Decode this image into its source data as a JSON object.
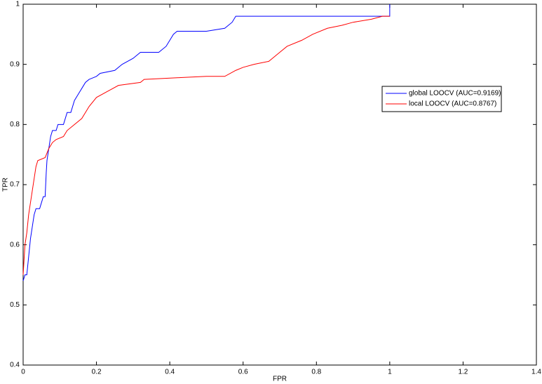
{
  "chart_data": {
    "type": "line",
    "xlabel": "FPR",
    "ylabel": "TPR",
    "xlim": [
      0,
      1.4
    ],
    "ylim": [
      0.4,
      1
    ],
    "xticks": [
      0,
      0.2,
      0.4,
      0.6,
      0.8,
      1,
      1.2,
      1.4
    ],
    "yticks": [
      0.4,
      0.5,
      0.6,
      0.7,
      0.8,
      0.9,
      1
    ],
    "legend": "east",
    "series": [
      {
        "name": "global LOOCV (AUC=0.9169)",
        "color": "#0000ff",
        "x": [
          0,
          0.005,
          0.01,
          0.015,
          0.02,
          0.025,
          0.03,
          0.035,
          0.045,
          0.05,
          0.055,
          0.06,
          0.063,
          0.065,
          0.07,
          0.075,
          0.08,
          0.09,
          0.095,
          0.11,
          0.12,
          0.13,
          0.14,
          0.15,
          0.16,
          0.17,
          0.18,
          0.2,
          0.21,
          0.25,
          0.27,
          0.3,
          0.32,
          0.37,
          0.39,
          0.41,
          0.42,
          0.5,
          0.55,
          0.57,
          0.58,
          0.99,
          1,
          1
        ],
        "values": [
          0.54,
          0.55,
          0.55,
          0.58,
          0.61,
          0.63,
          0.65,
          0.66,
          0.66,
          0.67,
          0.68,
          0.68,
          0.72,
          0.74,
          0.76,
          0.78,
          0.79,
          0.79,
          0.8,
          0.8,
          0.82,
          0.82,
          0.84,
          0.85,
          0.86,
          0.87,
          0.875,
          0.88,
          0.885,
          0.89,
          0.9,
          0.91,
          0.92,
          0.92,
          0.93,
          0.95,
          0.955,
          0.955,
          0.96,
          0.97,
          0.98,
          0.98,
          0.98,
          1
        ]
      },
      {
        "name": "local LOOCV (AUC=0.8767)",
        "color": "#ff0000",
        "x": [
          0,
          0.005,
          0.01,
          0.015,
          0.02,
          0.025,
          0.03,
          0.035,
          0.04,
          0.06,
          0.07,
          0.08,
          0.09,
          0.11,
          0.12,
          0.14,
          0.16,
          0.18,
          0.2,
          0.23,
          0.26,
          0.32,
          0.33,
          0.43,
          0.5,
          0.55,
          0.58,
          0.6,
          0.63,
          0.67,
          0.68,
          0.7,
          0.72,
          0.76,
          0.79,
          0.83,
          0.87,
          0.9,
          0.95,
          0.98,
          1
        ],
        "values": [
          0.55,
          0.6,
          0.62,
          0.65,
          0.67,
          0.69,
          0.71,
          0.73,
          0.74,
          0.745,
          0.76,
          0.77,
          0.775,
          0.78,
          0.79,
          0.8,
          0.81,
          0.83,
          0.845,
          0.855,
          0.865,
          0.87,
          0.875,
          0.878,
          0.88,
          0.88,
          0.89,
          0.895,
          0.9,
          0.905,
          0.91,
          0.92,
          0.93,
          0.94,
          0.95,
          0.96,
          0.965,
          0.97,
          0.975,
          0.98,
          0.98
        ]
      }
    ]
  }
}
